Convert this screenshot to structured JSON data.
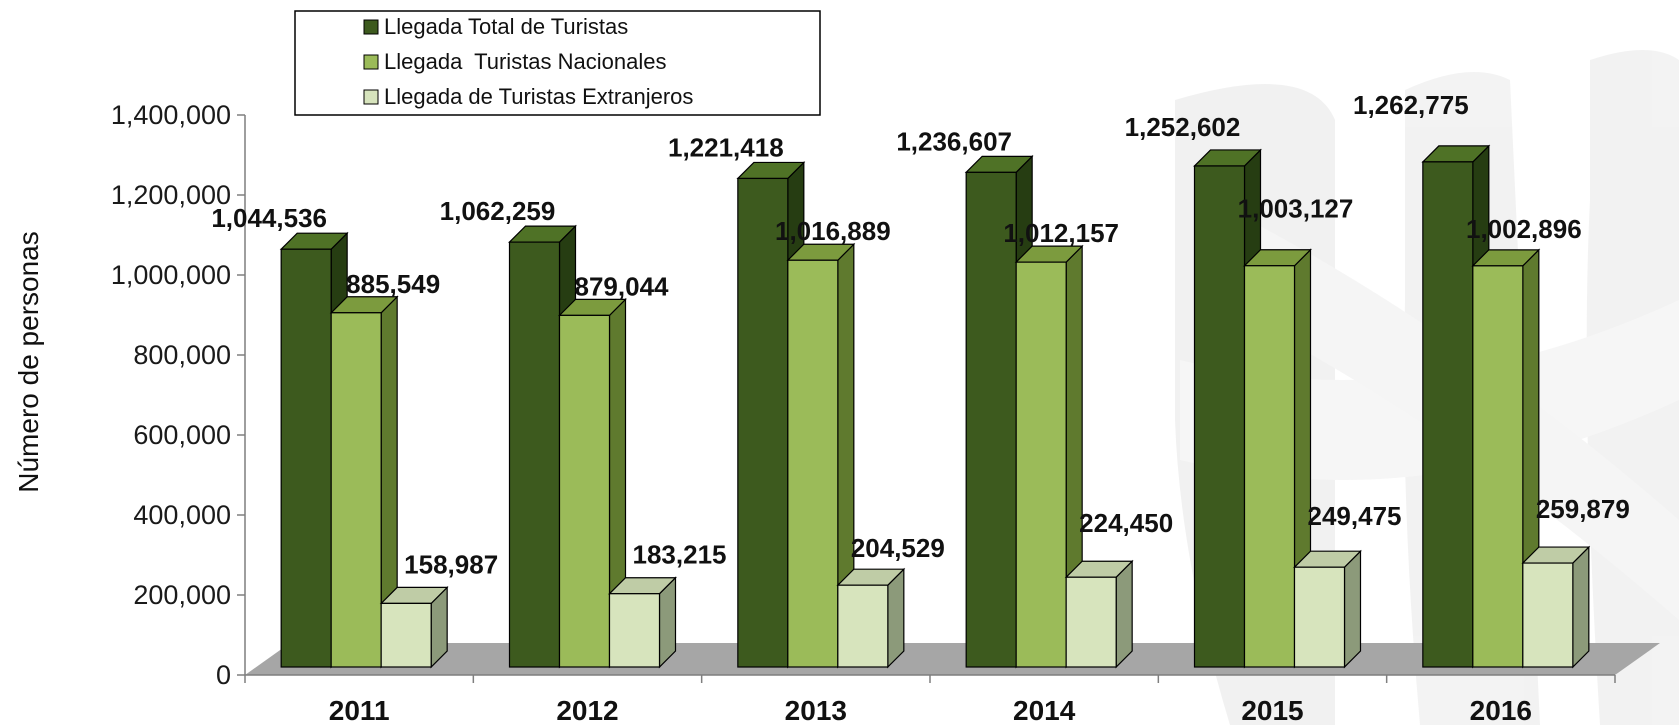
{
  "chart_data": {
    "type": "bar",
    "categories": [
      "2011",
      "2012",
      "2013",
      "2014",
      "2015",
      "2016"
    ],
    "series": [
      {
        "name": "Llegada Total de Turistas",
        "values": [
          1044536,
          1062259,
          1221418,
          1236607,
          1252602,
          1262775
        ],
        "color": "#3d5a1e",
        "labels": [
          "1,044,536",
          "1,062,259",
          "1,221,418",
          "1,236,607",
          "1,252,602",
          "1,262,775"
        ]
      },
      {
        "name": "Llegada  Turistas Nacionales",
        "values": [
          885549,
          879044,
          1016889,
          1012157,
          1003127,
          1002896
        ],
        "color": "#9bbb59",
        "labels": [
          "885,549",
          "879,044",
          "1,016,889",
          "1,012,157",
          "1,003,127",
          "1,002,896"
        ]
      },
      {
        "name": "Llegada de Turistas Extranjeros",
        "values": [
          158987,
          183215,
          204529,
          224450,
          249475,
          259879
        ],
        "color": "#d7e4bd",
        "labels": [
          "158,987",
          "183,215",
          "204,529",
          "224,450",
          "249,475",
          "259,879"
        ]
      }
    ],
    "ylabel": "Número de personas",
    "ylim": [
      0,
      1400000
    ],
    "yticks": [
      0,
      200000,
      400000,
      600000,
      800000,
      1000000,
      1200000,
      1400000
    ],
    "ytick_labels": [
      "0",
      "200,000",
      "400,000",
      "600,000",
      "800,000",
      "1,000,000",
      "1,200,000",
      "1,400,000"
    ],
    "legend_position": "top-left",
    "grid": false,
    "style": "3d-clustered-column"
  }
}
